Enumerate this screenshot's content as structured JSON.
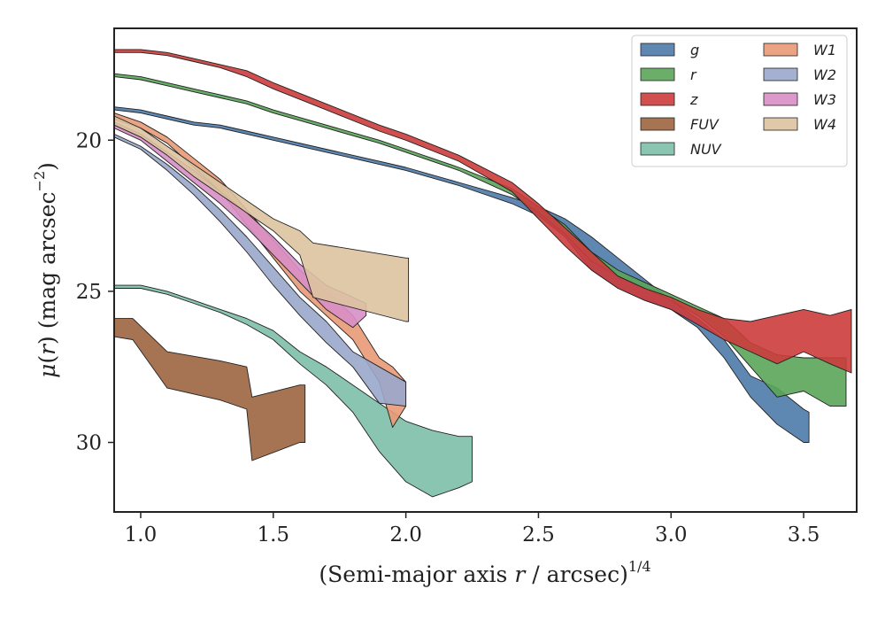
{
  "chart_data": {
    "type": "area",
    "xlabel": "(Semi-major axis r / arcsec)^{1/4}",
    "xlabel_parts": {
      "a": "(Semi-major axis ",
      "b": "r",
      "c": " / arcsec)",
      "sup": "1/4"
    },
    "ylabel": "μ(r) (mag arcsec^{-2})",
    "ylabel_parts": {
      "a": "μ",
      "b": "(",
      "c": "r",
      "d": ") (mag arcsec",
      "sup": "−2",
      "e": ")"
    },
    "xlim": [
      0.9,
      3.7
    ],
    "ylim": [
      32.3,
      16.3
    ],
    "y_inverted": true,
    "xticks": [
      1.0,
      1.5,
      2.0,
      2.5,
      3.0,
      3.5
    ],
    "xtick_labels": [
      "1.0",
      "1.5",
      "2.0",
      "2.5",
      "3.0",
      "3.5"
    ],
    "yticks": [
      20,
      25,
      30
    ],
    "ytick_labels": [
      "20",
      "25",
      "30"
    ],
    "grid": false,
    "legend": {
      "placement": "top-right",
      "columns": 2
    },
    "series": [
      {
        "name": "g",
        "color": "#4c7aa8",
        "upper": [
          [
            0.9,
            18.9
          ],
          [
            1.0,
            19.0
          ],
          [
            1.1,
            19.2
          ],
          [
            1.2,
            19.4
          ],
          [
            1.3,
            19.5
          ],
          [
            1.4,
            19.7
          ],
          [
            1.5,
            19.9
          ],
          [
            1.7,
            20.3
          ],
          [
            1.9,
            20.7
          ],
          [
            2.0,
            20.9
          ],
          [
            2.2,
            21.4
          ],
          [
            2.4,
            21.9
          ],
          [
            2.5,
            22.2
          ],
          [
            2.6,
            22.6
          ],
          [
            2.7,
            23.2
          ],
          [
            2.8,
            23.9
          ],
          [
            2.9,
            24.6
          ],
          [
            3.0,
            25.3
          ],
          [
            3.1,
            25.9
          ],
          [
            3.2,
            26.6
          ],
          [
            3.3,
            27.8
          ],
          [
            3.4,
            28.2
          ],
          [
            3.5,
            28.9
          ],
          [
            3.52,
            29.0
          ]
        ],
        "lower": [
          [
            0.9,
            19.0
          ],
          [
            1.0,
            19.1
          ],
          [
            1.1,
            19.3
          ],
          [
            1.2,
            19.5
          ],
          [
            1.3,
            19.6
          ],
          [
            1.4,
            19.8
          ],
          [
            1.5,
            20.0
          ],
          [
            1.7,
            20.4
          ],
          [
            1.9,
            20.8
          ],
          [
            2.0,
            21.0
          ],
          [
            2.2,
            21.5
          ],
          [
            2.4,
            22.1
          ],
          [
            2.5,
            22.5
          ],
          [
            2.6,
            23.2
          ],
          [
            2.7,
            24.3
          ],
          [
            2.8,
            24.9
          ],
          [
            2.9,
            25.3
          ],
          [
            3.0,
            25.6
          ],
          [
            3.1,
            26.2
          ],
          [
            3.2,
            27.2
          ],
          [
            3.3,
            28.5
          ],
          [
            3.4,
            29.4
          ],
          [
            3.5,
            30.0
          ],
          [
            3.52,
            30.0
          ]
        ]
      },
      {
        "name": "r",
        "color": "#5aa55a",
        "upper": [
          [
            0.9,
            17.8
          ],
          [
            1.0,
            17.9
          ],
          [
            1.1,
            18.1
          ],
          [
            1.2,
            18.3
          ],
          [
            1.3,
            18.5
          ],
          [
            1.4,
            18.7
          ],
          [
            1.5,
            19.0
          ],
          [
            1.7,
            19.5
          ],
          [
            1.9,
            20.0
          ],
          [
            2.0,
            20.3
          ],
          [
            2.2,
            20.9
          ],
          [
            2.4,
            21.6
          ],
          [
            2.5,
            22.2
          ],
          [
            2.6,
            22.8
          ],
          [
            2.7,
            23.7
          ],
          [
            2.8,
            24.3
          ],
          [
            2.9,
            24.7
          ],
          [
            3.0,
            25.1
          ],
          [
            3.1,
            25.5
          ],
          [
            3.2,
            25.9
          ],
          [
            3.3,
            26.7
          ],
          [
            3.4,
            27.1
          ],
          [
            3.5,
            27.2
          ],
          [
            3.6,
            27.2
          ],
          [
            3.65,
            27.2
          ],
          [
            3.66,
            27.2
          ]
        ],
        "lower": [
          [
            0.9,
            17.9
          ],
          [
            1.0,
            18.0
          ],
          [
            1.1,
            18.2
          ],
          [
            1.2,
            18.4
          ],
          [
            1.3,
            18.6
          ],
          [
            1.4,
            18.8
          ],
          [
            1.5,
            19.1
          ],
          [
            1.7,
            19.6
          ],
          [
            1.9,
            20.1
          ],
          [
            2.0,
            20.4
          ],
          [
            2.2,
            21.0
          ],
          [
            2.4,
            21.8
          ],
          [
            2.5,
            22.4
          ],
          [
            2.6,
            23.1
          ],
          [
            2.7,
            24.0
          ],
          [
            2.8,
            24.5
          ],
          [
            2.9,
            24.9
          ],
          [
            3.0,
            25.3
          ],
          [
            3.1,
            25.8
          ],
          [
            3.2,
            26.5
          ],
          [
            3.3,
            27.5
          ],
          [
            3.4,
            28.5
          ],
          [
            3.5,
            28.3
          ],
          [
            3.6,
            28.8
          ],
          [
            3.65,
            28.8
          ],
          [
            3.66,
            28.8
          ]
        ]
      },
      {
        "name": "z",
        "color": "#cc3c3c",
        "upper": [
          [
            0.9,
            17.0
          ],
          [
            1.0,
            17.0
          ],
          [
            1.1,
            17.1
          ],
          [
            1.2,
            17.3
          ],
          [
            1.3,
            17.5
          ],
          [
            1.4,
            17.7
          ],
          [
            1.5,
            18.1
          ],
          [
            1.7,
            18.8
          ],
          [
            1.9,
            19.5
          ],
          [
            2.0,
            19.8
          ],
          [
            2.2,
            20.5
          ],
          [
            2.4,
            21.4
          ],
          [
            2.5,
            22.1
          ],
          [
            2.6,
            22.9
          ],
          [
            2.7,
            23.7
          ],
          [
            2.8,
            24.5
          ],
          [
            2.9,
            24.9
          ],
          [
            3.0,
            25.2
          ],
          [
            3.1,
            25.6
          ],
          [
            3.2,
            25.9
          ],
          [
            3.3,
            26.0
          ],
          [
            3.4,
            25.8
          ],
          [
            3.5,
            25.6
          ],
          [
            3.6,
            25.8
          ],
          [
            3.68,
            25.6
          ]
        ],
        "lower": [
          [
            0.9,
            17.1
          ],
          [
            1.0,
            17.1
          ],
          [
            1.1,
            17.2
          ],
          [
            1.2,
            17.4
          ],
          [
            1.3,
            17.6
          ],
          [
            1.4,
            17.9
          ],
          [
            1.5,
            18.3
          ],
          [
            1.7,
            19.0
          ],
          [
            1.9,
            19.7
          ],
          [
            2.0,
            20.0
          ],
          [
            2.2,
            20.7
          ],
          [
            2.4,
            21.7
          ],
          [
            2.5,
            22.6
          ],
          [
            2.6,
            23.5
          ],
          [
            2.7,
            24.3
          ],
          [
            2.8,
            24.9
          ],
          [
            2.9,
            25.3
          ],
          [
            3.0,
            25.6
          ],
          [
            3.1,
            26.1
          ],
          [
            3.2,
            26.6
          ],
          [
            3.3,
            27.0
          ],
          [
            3.4,
            27.4
          ],
          [
            3.5,
            27.0
          ],
          [
            3.6,
            27.4
          ],
          [
            3.68,
            27.7
          ]
        ]
      },
      {
        "name": "FUV",
        "color": "#9c6440",
        "upper": [
          [
            0.9,
            25.9
          ],
          [
            0.97,
            25.9
          ],
          [
            1.1,
            27.0
          ],
          [
            1.3,
            27.3
          ],
          [
            1.4,
            27.5
          ],
          [
            1.42,
            28.5
          ],
          [
            1.6,
            28.1
          ],
          [
            1.62,
            28.1
          ]
        ],
        "lower": [
          [
            0.9,
            26.5
          ],
          [
            0.97,
            26.6
          ],
          [
            1.1,
            28.2
          ],
          [
            1.3,
            28.6
          ],
          [
            1.4,
            28.9
          ],
          [
            1.42,
            30.6
          ],
          [
            1.6,
            30.0
          ],
          [
            1.62,
            30.0
          ]
        ]
      },
      {
        "name": "NUV",
        "color": "#7dbfa8",
        "upper": [
          [
            0.9,
            24.8
          ],
          [
            1.0,
            24.8
          ],
          [
            1.1,
            25.0
          ],
          [
            1.2,
            25.3
          ],
          [
            1.3,
            25.6
          ],
          [
            1.4,
            25.9
          ],
          [
            1.5,
            26.3
          ],
          [
            1.6,
            27.0
          ],
          [
            1.7,
            27.5
          ],
          [
            1.8,
            28.1
          ],
          [
            1.9,
            28.7
          ],
          [
            2.0,
            29.3
          ],
          [
            2.1,
            29.6
          ],
          [
            2.2,
            29.8
          ],
          [
            2.25,
            29.8
          ]
        ],
        "lower": [
          [
            0.9,
            24.9
          ],
          [
            1.0,
            24.9
          ],
          [
            1.1,
            25.1
          ],
          [
            1.2,
            25.4
          ],
          [
            1.3,
            25.7
          ],
          [
            1.4,
            26.1
          ],
          [
            1.5,
            26.6
          ],
          [
            1.6,
            27.4
          ],
          [
            1.7,
            28.1
          ],
          [
            1.8,
            29.0
          ],
          [
            1.9,
            30.3
          ],
          [
            2.0,
            31.3
          ],
          [
            2.1,
            31.8
          ],
          [
            2.2,
            31.5
          ],
          [
            2.25,
            31.3
          ]
        ]
      },
      {
        "name": "W1",
        "color": "#e99a76",
        "upper": [
          [
            0.9,
            19.1
          ],
          [
            1.0,
            19.4
          ],
          [
            1.1,
            19.9
          ],
          [
            1.2,
            20.6
          ],
          [
            1.3,
            21.3
          ],
          [
            1.4,
            22.3
          ],
          [
            1.5,
            23.3
          ],
          [
            1.6,
            24.3
          ],
          [
            1.7,
            25.0
          ],
          [
            1.8,
            25.8
          ],
          [
            1.9,
            27.2
          ],
          [
            1.95,
            27.5
          ],
          [
            2.0,
            28.0
          ]
        ],
        "lower": [
          [
            0.9,
            19.3
          ],
          [
            1.0,
            19.6
          ],
          [
            1.1,
            20.1
          ],
          [
            1.2,
            20.9
          ],
          [
            1.3,
            21.7
          ],
          [
            1.4,
            22.8
          ],
          [
            1.5,
            23.9
          ],
          [
            1.6,
            25.0
          ],
          [
            1.7,
            25.8
          ],
          [
            1.8,
            26.6
          ],
          [
            1.9,
            28.0
          ],
          [
            1.95,
            29.5
          ],
          [
            2.0,
            28.8
          ]
        ]
      },
      {
        "name": "W2",
        "color": "#99a7cb",
        "upper": [
          [
            0.9,
            19.8
          ],
          [
            1.0,
            20.2
          ],
          [
            1.1,
            20.8
          ],
          [
            1.2,
            21.5
          ],
          [
            1.3,
            22.3
          ],
          [
            1.4,
            23.2
          ],
          [
            1.5,
            24.2
          ],
          [
            1.6,
            25.2
          ],
          [
            1.7,
            26.0
          ],
          [
            1.8,
            27.0
          ],
          [
            1.9,
            27.5
          ],
          [
            2.0,
            28.0
          ]
        ],
        "lower": [
          [
            0.9,
            19.9
          ],
          [
            1.0,
            20.3
          ],
          [
            1.1,
            21.0
          ],
          [
            1.2,
            21.8
          ],
          [
            1.3,
            22.7
          ],
          [
            1.4,
            23.7
          ],
          [
            1.5,
            24.8
          ],
          [
            1.6,
            25.8
          ],
          [
            1.7,
            26.7
          ],
          [
            1.8,
            27.5
          ],
          [
            1.9,
            28.7
          ],
          [
            2.0,
            28.8
          ]
        ]
      },
      {
        "name": "W3",
        "color": "#d88fc6",
        "upper": [
          [
            0.9,
            19.4
          ],
          [
            1.0,
            19.8
          ],
          [
            1.1,
            20.4
          ],
          [
            1.2,
            21.0
          ],
          [
            1.3,
            21.7
          ],
          [
            1.4,
            22.4
          ],
          [
            1.5,
            23.2
          ],
          [
            1.6,
            24.1
          ],
          [
            1.7,
            24.8
          ],
          [
            1.8,
            25.2
          ],
          [
            1.85,
            25.4
          ]
        ],
        "lower": [
          [
            0.9,
            19.6
          ],
          [
            1.0,
            20.0
          ],
          [
            1.1,
            20.7
          ],
          [
            1.2,
            21.4
          ],
          [
            1.3,
            22.1
          ],
          [
            1.4,
            22.9
          ],
          [
            1.5,
            23.8
          ],
          [
            1.6,
            24.7
          ],
          [
            1.7,
            25.6
          ],
          [
            1.8,
            26.2
          ],
          [
            1.85,
            25.8
          ]
        ]
      },
      {
        "name": "W4",
        "color": "#dcc3a0",
        "upper": [
          [
            0.9,
            19.2
          ],
          [
            1.0,
            19.6
          ],
          [
            1.1,
            20.2
          ],
          [
            1.2,
            20.8
          ],
          [
            1.3,
            21.4
          ],
          [
            1.4,
            22.0
          ],
          [
            1.5,
            22.6
          ],
          [
            1.6,
            23.0
          ],
          [
            1.65,
            23.4
          ],
          [
            2.0,
            23.9
          ],
          [
            2.01,
            23.9
          ]
        ],
        "lower": [
          [
            0.9,
            19.5
          ],
          [
            1.0,
            19.9
          ],
          [
            1.1,
            20.5
          ],
          [
            1.2,
            21.2
          ],
          [
            1.3,
            21.8
          ],
          [
            1.4,
            22.4
          ],
          [
            1.5,
            23.0
          ],
          [
            1.6,
            23.8
          ],
          [
            1.65,
            25.2
          ],
          [
            2.0,
            26.0
          ],
          [
            2.01,
            26.0
          ]
        ]
      }
    ]
  }
}
